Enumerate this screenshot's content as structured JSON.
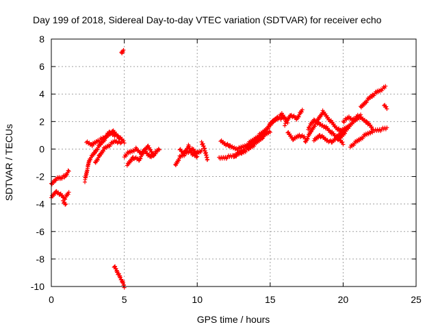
{
  "chart_data": {
    "type": "scatter",
    "title": "Day 199 of 2018, Sidereal Day-to-day VTEC variation (SDTVAR) for receiver echo",
    "xlabel": "GPS time / hours",
    "ylabel": "SDTVAR / TECUs",
    "xlim": [
      0,
      25
    ],
    "ylim": [
      -10,
      8
    ],
    "x_ticks": [
      0,
      5,
      10,
      15,
      20,
      25
    ],
    "y_ticks": [
      -10,
      -8,
      -6,
      -4,
      -2,
      0,
      2,
      4,
      6,
      8
    ],
    "grid": true,
    "marker": "+",
    "color": "#ff0000",
    "series": [
      {
        "name": "SDTVAR",
        "segments": [
          {
            "x": [
              0.0,
              0.3,
              0.6,
              0.9,
              1.2
            ],
            "y": [
              -2.6,
              -2.2,
              -2.1,
              -2.0,
              -1.6
            ]
          },
          {
            "x": [
              0.0,
              0.3,
              0.6,
              0.9,
              1.2
            ],
            "y": [
              -3.5,
              -3.1,
              -3.3,
              -3.6,
              -3.2
            ]
          },
          {
            "x": [
              0.8,
              1.0
            ],
            "y": [
              -3.8,
              -4.0
            ]
          },
          {
            "x": [
              2.3,
              2.6,
              3.0,
              3.4,
              3.8,
              4.2,
              4.6,
              5.0
            ],
            "y": [
              -2.3,
              -0.8,
              -0.2,
              0.4,
              0.9,
              1.3,
              0.9,
              0.5
            ]
          },
          {
            "x": [
              2.4,
              2.8,
              3.2,
              3.6,
              4.0,
              4.4
            ],
            "y": [
              0.5,
              0.3,
              0.6,
              0.8,
              1.2,
              1.0
            ]
          },
          {
            "x": [
              3.0,
              3.3,
              3.6,
              4.0,
              4.4,
              4.8
            ],
            "y": [
              -1.0,
              -0.5,
              0.0,
              0.3,
              0.6,
              0.4
            ]
          },
          {
            "x": [
              5.0,
              5.4,
              5.8,
              6.2,
              6.6,
              7.0,
              7.4
            ],
            "y": [
              -0.5,
              -0.2,
              0.0,
              -0.3,
              0.2,
              -0.4,
              0.0
            ]
          },
          {
            "x": [
              5.2,
              5.6,
              6.0,
              6.4,
              6.8,
              7.2
            ],
            "y": [
              -1.2,
              -0.6,
              -0.8,
              -0.1,
              -0.6,
              -0.2
            ]
          },
          {
            "x": [
              8.5,
              8.8,
              9.1,
              9.4,
              9.7,
              10.0,
              10.3
            ],
            "y": [
              -1.2,
              -0.6,
              -0.4,
              -0.2,
              0.0,
              -0.3,
              -0.1
            ]
          },
          {
            "x": [
              8.8,
              9.1,
              9.4,
              9.7,
              10.0
            ],
            "y": [
              0.0,
              -0.3,
              0.2,
              -0.4,
              -0.6
            ]
          },
          {
            "x": [
              10.3,
              10.5,
              10.7
            ],
            "y": [
              0.5,
              0.0,
              -0.8
            ]
          },
          {
            "x": [
              11.5,
              12.0,
              12.5,
              13.0,
              13.5,
              14.0,
              14.5,
              15.0,
              15.5,
              16.0
            ],
            "y": [
              -0.7,
              -0.6,
              -0.5,
              -0.2,
              0.2,
              0.6,
              1.1,
              1.8,
              2.3,
              2.2
            ]
          },
          {
            "x": [
              11.6,
              12.2,
              12.8,
              13.4,
              14.0,
              14.6,
              15.2,
              15.8,
              16.2
            ],
            "y": [
              0.6,
              0.2,
              0.0,
              0.3,
              0.8,
              1.3,
              2.0,
              2.5,
              2.0
            ]
          },
          {
            "x": [
              12.5,
              13.0,
              13.5,
              14.0,
              14.5,
              15.0
            ],
            "y": [
              -0.5,
              -0.3,
              0.0,
              0.4,
              0.9,
              1.3
            ]
          },
          {
            "x": [
              16.0,
              16.4,
              16.8,
              17.2
            ],
            "y": [
              1.8,
              2.5,
              2.2,
              2.8
            ]
          },
          {
            "x": [
              16.2,
              16.6,
              17.0,
              17.4
            ],
            "y": [
              1.2,
              0.7,
              1.0,
              0.8
            ]
          },
          {
            "x": [
              17.4,
              17.8,
              18.2,
              18.6,
              19.0,
              19.4,
              19.8,
              20.2
            ],
            "y": [
              0.5,
              1.3,
              2.0,
              2.7,
              2.2,
              1.7,
              1.3,
              1.6
            ]
          },
          {
            "x": [
              17.6,
              18.0,
              18.4,
              18.8,
              19.2,
              19.6,
              20.0
            ],
            "y": [
              1.5,
              2.1,
              1.8,
              1.6,
              1.2,
              0.8,
              0.4
            ]
          },
          {
            "x": [
              18.0,
              18.4,
              18.8,
              19.2,
              19.6,
              20.0,
              20.4
            ],
            "y": [
              0.6,
              1.0,
              0.7,
              0.5,
              0.9,
              1.3,
              1.7
            ]
          },
          {
            "x": [
              19.8,
              20.4,
              21.0,
              21.6,
              22.0
            ],
            "y": [
              0.8,
              1.6,
              2.4,
              2.0,
              1.5
            ]
          },
          {
            "x": [
              20.5,
              21.0,
              21.5,
              22.0,
              22.5,
              23.0
            ],
            "y": [
              0.2,
              0.6,
              1.0,
              1.3,
              1.4,
              1.5
            ]
          },
          {
            "x": [
              20.0,
              20.4,
              20.8,
              21.2
            ],
            "y": [
              2.0,
              2.3,
              2.1,
              2.4
            ]
          },
          {
            "x": [
              21.2,
              21.6,
              22.0,
              22.4,
              22.9
            ],
            "y": [
              3.0,
              3.5,
              3.9,
              4.2,
              4.5
            ]
          },
          {
            "x": [
              22.8,
              23.0
            ],
            "y": [
              3.2,
              3.0
            ]
          },
          {
            "x": [
              4.8,
              4.95
            ],
            "y": [
              7.0,
              7.2
            ]
          },
          {
            "x": [
              4.3,
              4.5,
              4.7,
              4.9,
              5.0
            ],
            "y": [
              -8.5,
              -8.9,
              -9.3,
              -9.7,
              -10.0
            ]
          }
        ]
      }
    ]
  }
}
